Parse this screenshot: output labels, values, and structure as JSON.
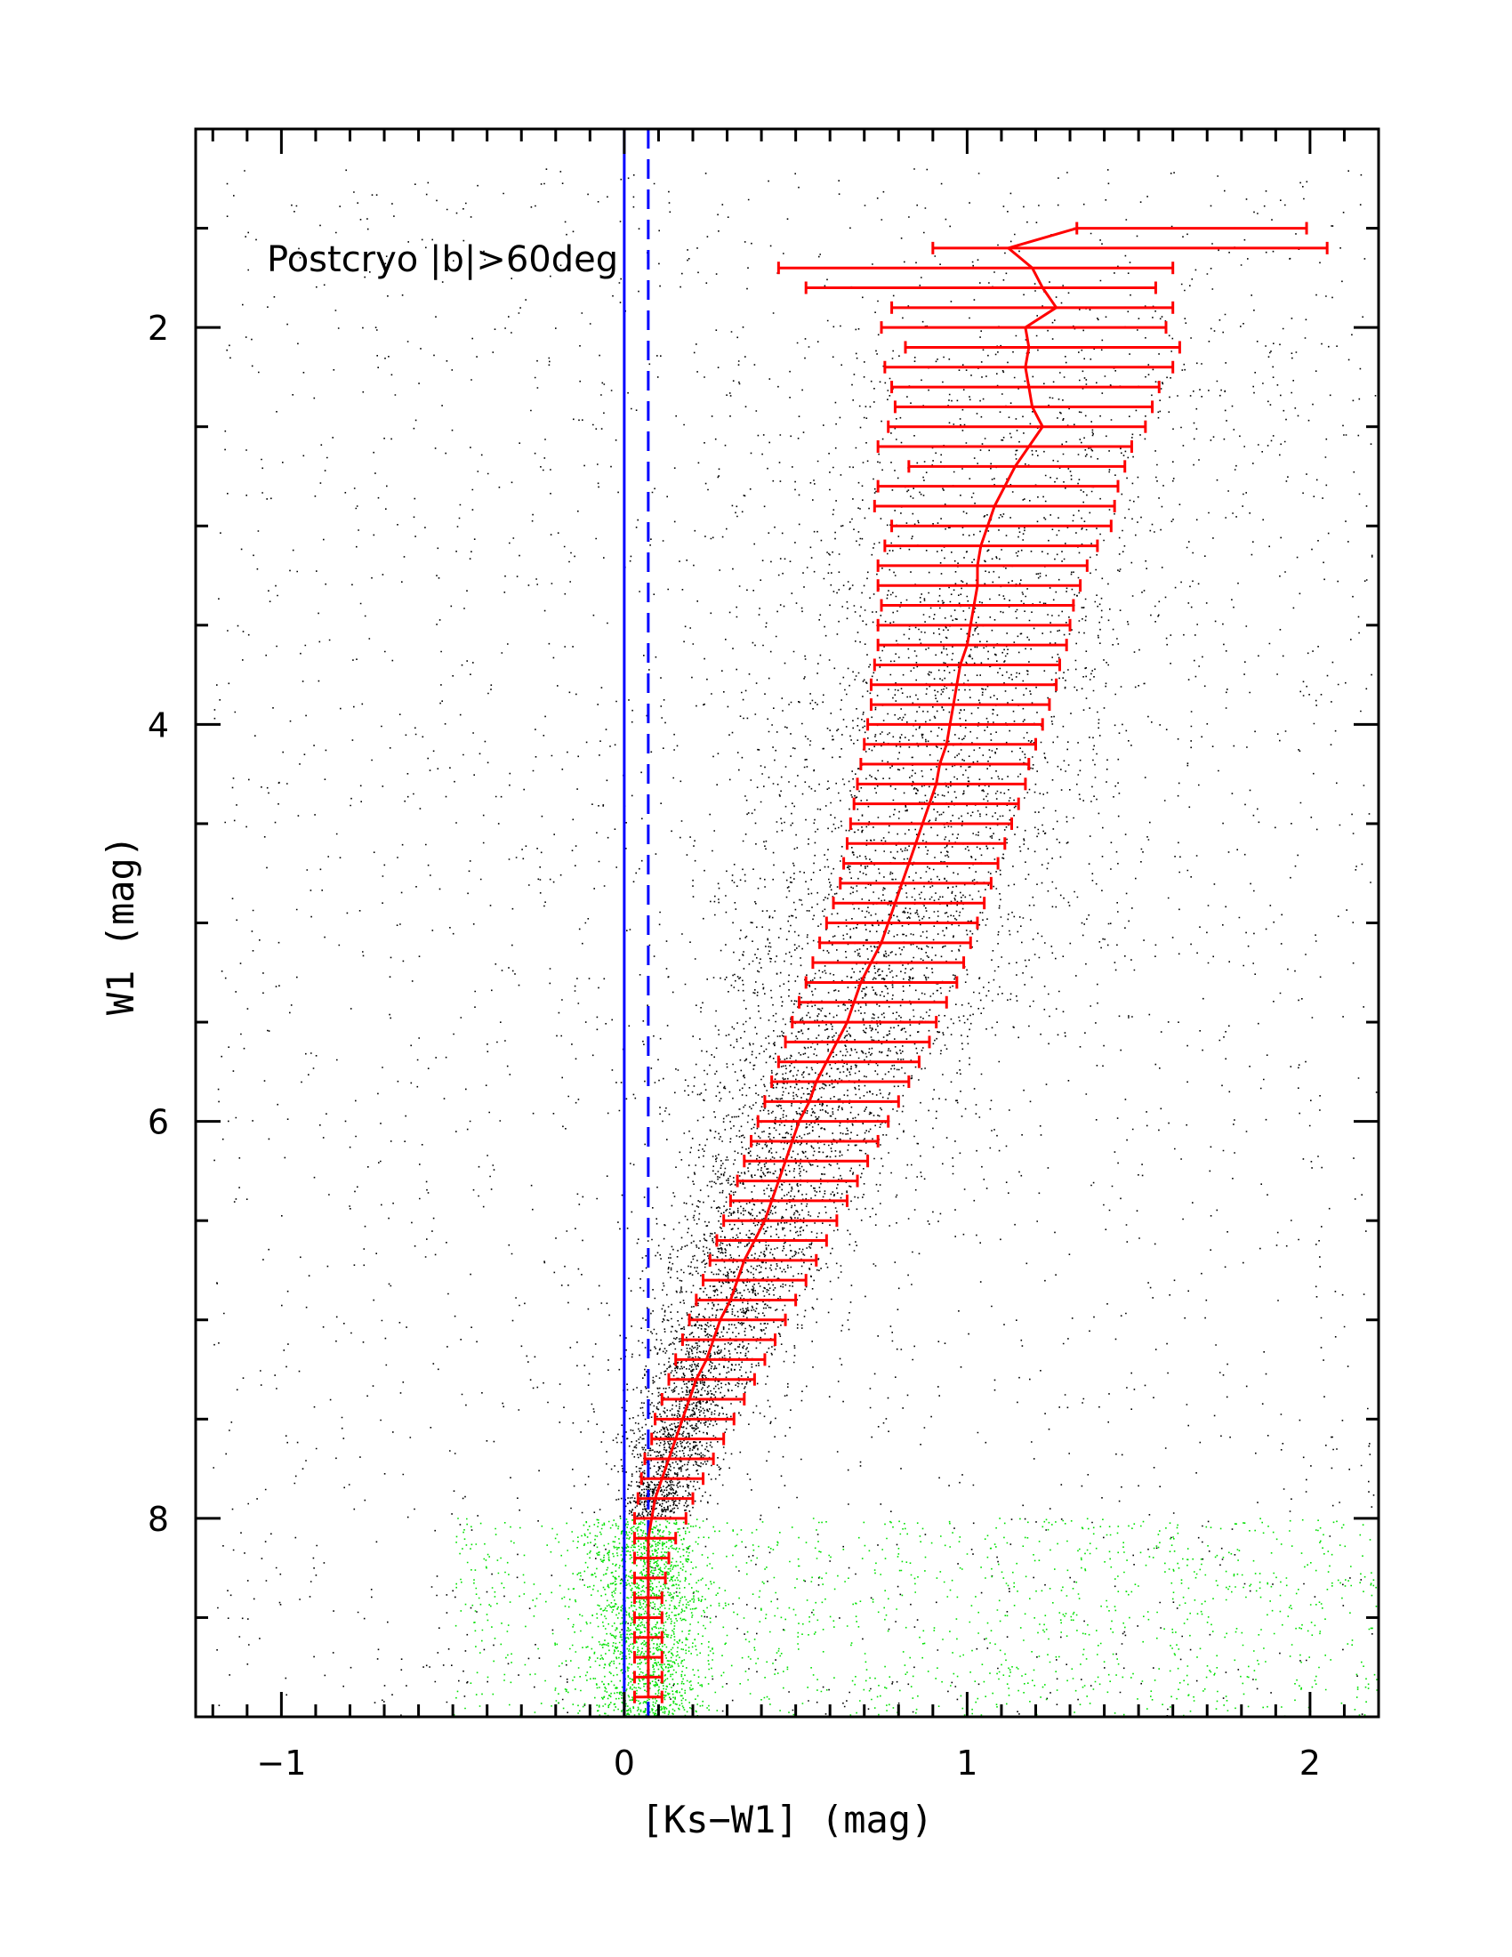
{
  "chart_data": {
    "type": "scatter",
    "title": "",
    "xlabel": "[Ks−W1] (mag)",
    "ylabel": "W1 (mag)",
    "xlim": [
      -1.25,
      2.2
    ],
    "ylim": [
      9.0,
      1.0
    ],
    "y_inverted": true,
    "x_ticks": [
      -1,
      0,
      1,
      2
    ],
    "x_tick_labels": [
      "−1",
      "0",
      "1",
      "2"
    ],
    "y_ticks": [
      2,
      4,
      6,
      8
    ],
    "y_tick_labels": [
      "2",
      "4",
      "6",
      "8"
    ],
    "annotation": "Postcryo |b|>60deg",
    "grid": false,
    "colors": {
      "scatter": "#000000",
      "scatter_faint": "#00e000",
      "binned": "#ff0000",
      "reference": "#0000ff"
    },
    "reference_lines": [
      {
        "x": 0.0,
        "style": "solid",
        "color": "#0000ff"
      },
      {
        "x": 0.07,
        "style": "dashed",
        "color": "#0000ff"
      }
    ],
    "binned_series": {
      "w1": [
        1.5,
        1.6,
        1.7,
        1.8,
        1.9,
        2.0,
        2.1,
        2.2,
        2.3,
        2.4,
        2.5,
        2.6,
        2.7,
        2.8,
        2.9,
        3.0,
        3.1,
        3.2,
        3.3,
        3.4,
        3.5,
        3.6,
        3.7,
        3.8,
        3.9,
        4.0,
        4.1,
        4.2,
        4.3,
        4.4,
        4.5,
        4.6,
        4.7,
        4.8,
        4.9,
        5.0,
        5.1,
        5.2,
        5.3,
        5.4,
        5.5,
        5.6,
        5.7,
        5.8,
        5.9,
        6.0,
        6.1,
        6.2,
        6.3,
        6.4,
        6.5,
        6.6,
        6.7,
        6.8,
        6.9,
        7.0,
        7.1,
        7.2,
        7.3,
        7.4,
        7.5,
        7.6,
        7.7,
        7.8,
        7.9,
        8.0,
        8.1,
        8.2,
        8.3,
        8.4,
        8.5,
        8.6,
        8.7,
        8.8,
        8.9
      ],
      "mean": [
        1.32,
        1.12,
        1.19,
        1.22,
        1.26,
        1.17,
        1.18,
        1.17,
        1.18,
        1.19,
        1.22,
        1.18,
        1.14,
        1.11,
        1.08,
        1.06,
        1.04,
        1.03,
        1.03,
        1.02,
        1.01,
        1.0,
        0.98,
        0.97,
        0.96,
        0.95,
        0.94,
        0.92,
        0.91,
        0.89,
        0.87,
        0.85,
        0.83,
        0.81,
        0.79,
        0.77,
        0.75,
        0.72,
        0.69,
        0.67,
        0.65,
        0.62,
        0.59,
        0.56,
        0.54,
        0.51,
        0.49,
        0.47,
        0.45,
        0.43,
        0.41,
        0.38,
        0.35,
        0.33,
        0.31,
        0.28,
        0.26,
        0.24,
        0.21,
        0.19,
        0.17,
        0.15,
        0.13,
        0.11,
        0.09,
        0.08,
        0.07,
        0.07,
        0.07,
        0.07,
        0.07,
        0.07,
        0.07,
        0.07,
        0.07
      ],
      "low": [
        1.32,
        0.9,
        0.45,
        0.53,
        0.78,
        0.75,
        0.82,
        0.76,
        0.78,
        0.79,
        0.77,
        0.74,
        0.83,
        0.74,
        0.73,
        0.78,
        0.76,
        0.74,
        0.74,
        0.75,
        0.74,
        0.74,
        0.73,
        0.72,
        0.72,
        0.71,
        0.7,
        0.69,
        0.68,
        0.67,
        0.66,
        0.65,
        0.64,
        0.63,
        0.61,
        0.59,
        0.57,
        0.55,
        0.53,
        0.51,
        0.49,
        0.47,
        0.45,
        0.43,
        0.41,
        0.39,
        0.37,
        0.35,
        0.33,
        0.31,
        0.29,
        0.27,
        0.25,
        0.23,
        0.21,
        0.19,
        0.17,
        0.15,
        0.13,
        0.11,
        0.09,
        0.08,
        0.06,
        0.05,
        0.04,
        0.03,
        0.03,
        0.03,
        0.03,
        0.03,
        0.03,
        0.03,
        0.03,
        0.03,
        0.03
      ],
      "high": [
        1.99,
        2.05,
        1.6,
        1.55,
        1.6,
        1.58,
        1.62,
        1.6,
        1.56,
        1.54,
        1.52,
        1.48,
        1.46,
        1.44,
        1.43,
        1.42,
        1.38,
        1.35,
        1.33,
        1.31,
        1.3,
        1.29,
        1.27,
        1.26,
        1.24,
        1.22,
        1.2,
        1.18,
        1.17,
        1.15,
        1.13,
        1.11,
        1.09,
        1.07,
        1.05,
        1.03,
        1.01,
        0.99,
        0.97,
        0.94,
        0.91,
        0.89,
        0.86,
        0.83,
        0.8,
        0.77,
        0.74,
        0.71,
        0.68,
        0.65,
        0.62,
        0.59,
        0.56,
        0.53,
        0.5,
        0.47,
        0.44,
        0.41,
        0.38,
        0.35,
        0.32,
        0.29,
        0.26,
        0.23,
        0.2,
        0.18,
        0.15,
        0.13,
        0.12,
        0.11,
        0.11,
        0.11,
        0.11,
        0.11,
        0.11
      ]
    },
    "point_cloud": {
      "description_points_main": "dense black scatter along the red track, thinning with brighter W1",
      "description_points_faint": "green scatter for W1 > 8"
    }
  }
}
